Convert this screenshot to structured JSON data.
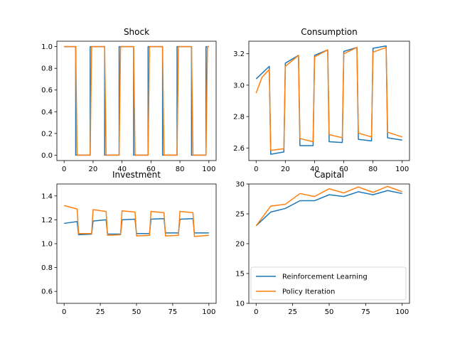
{
  "chart_data": [
    {
      "type": "line",
      "title": "Shock",
      "xlim": [
        -5,
        105
      ],
      "ylim": [
        -0.05,
        1.05
      ],
      "xticks": [
        0,
        20,
        40,
        60,
        80,
        100
      ],
      "yticks": [
        0.0,
        0.2,
        0.4,
        0.6,
        0.8,
        1.0
      ],
      "ytick_labels": [
        "0.0",
        "0.2",
        "0.4",
        "0.6",
        "0.8",
        "1.0"
      ],
      "series": [
        {
          "color": "#1f77b4",
          "x": [
            0,
            8,
            8.01,
            18,
            18.01,
            28,
            28.01,
            38,
            38.01,
            48,
            48.01,
            58,
            58.01,
            68,
            68.01,
            78,
            78.01,
            88,
            88.01,
            98,
            98.01,
            100
          ],
          "y": [
            1,
            1,
            0,
            0,
            1,
            1,
            0,
            0,
            1,
            1,
            0,
            0,
            1,
            1,
            0,
            0,
            1,
            1,
            0,
            0,
            1,
            1
          ]
        },
        {
          "color": "#ff7f0e",
          "x": [
            0,
            8,
            9,
            18,
            19,
            28,
            29,
            38,
            39,
            48,
            49,
            58,
            59,
            68,
            69,
            78,
            79,
            88,
            89,
            98,
            99,
            100
          ],
          "y": [
            1,
            1,
            0,
            0,
            1,
            1,
            0,
            0,
            1,
            1,
            0,
            0,
            1,
            1,
            0,
            0,
            1,
            1,
            0,
            0,
            1,
            1
          ]
        }
      ]
    },
    {
      "type": "line",
      "title": "Consumption",
      "xlim": [
        -5,
        105
      ],
      "ylim": [
        2.52,
        3.28
      ],
      "xticks": [
        0,
        20,
        40,
        60,
        80,
        100
      ],
      "yticks": [
        2.6,
        2.8,
        3.0,
        3.2
      ],
      "ytick_labels": [
        "2.6",
        "2.8",
        "3.0",
        "3.2"
      ],
      "series": [
        {
          "color": "#1f77b4",
          "x": [
            0,
            9,
            10,
            19,
            20,
            29,
            30,
            39,
            40,
            49,
            50,
            59,
            60,
            69,
            70,
            79,
            80,
            89,
            90,
            100
          ],
          "y": [
            3.04,
            3.12,
            2.56,
            2.575,
            3.14,
            3.19,
            2.615,
            2.615,
            3.19,
            3.225,
            2.64,
            2.635,
            3.215,
            3.24,
            2.655,
            2.645,
            3.235,
            3.25,
            2.665,
            2.65
          ]
        },
        {
          "color": "#ff7f0e",
          "x": [
            0,
            4,
            9,
            10,
            19,
            20,
            29,
            30,
            39,
            40,
            49,
            50,
            59,
            60,
            69,
            70,
            79,
            80,
            89,
            90,
            100
          ],
          "y": [
            2.95,
            3.05,
            3.1,
            2.585,
            2.595,
            3.12,
            3.19,
            2.66,
            2.64,
            3.18,
            3.225,
            2.685,
            2.665,
            3.2,
            3.24,
            2.695,
            2.67,
            3.21,
            3.24,
            2.7,
            2.67
          ]
        }
      ]
    },
    {
      "type": "line",
      "title": "Investment",
      "xlim": [
        -5,
        105
      ],
      "ylim": [
        0.5,
        1.5
      ],
      "xticks": [
        0,
        25,
        50,
        75,
        100
      ],
      "yticks": [
        0.6,
        0.8,
        1.0,
        1.2,
        1.4
      ],
      "ytick_labels": [
        "0.6",
        "0.8",
        "1.0",
        "1.2",
        "1.4"
      ],
      "series": [
        {
          "color": "#1f77b4",
          "x": [
            0,
            9,
            10,
            19,
            20,
            29,
            30,
            39,
            40,
            49,
            50,
            59,
            60,
            69,
            70,
            79,
            80,
            89,
            90,
            100
          ],
          "y": [
            1.17,
            1.185,
            1.075,
            1.08,
            1.19,
            1.2,
            1.08,
            1.08,
            1.2,
            1.205,
            1.085,
            1.085,
            1.205,
            1.21,
            1.09,
            1.09,
            1.205,
            1.21,
            1.09,
            1.09
          ]
        },
        {
          "color": "#ff7f0e",
          "x": [
            0,
            9,
            10,
            19,
            20,
            29,
            30,
            39,
            40,
            49,
            50,
            59,
            60,
            69,
            70,
            79,
            80,
            89,
            90,
            100
          ],
          "y": [
            1.32,
            1.29,
            1.085,
            1.085,
            1.285,
            1.27,
            1.07,
            1.075,
            1.275,
            1.265,
            1.065,
            1.07,
            1.27,
            1.26,
            1.065,
            1.07,
            1.27,
            1.26,
            1.06,
            1.07
          ]
        }
      ]
    },
    {
      "type": "line",
      "title": "Capital",
      "xlim": [
        -5,
        105
      ],
      "ylim": [
        10,
        30
      ],
      "xticks": [
        0,
        25,
        50,
        75,
        100
      ],
      "yticks": [
        10,
        15,
        20,
        25,
        30
      ],
      "ytick_labels": [
        "10",
        "15",
        "20",
        "25",
        "30"
      ],
      "legend": {
        "position": "lower right",
        "entries": [
          {
            "label": "Reinforcement Learning",
            "color": "#1f77b4"
          },
          {
            "label": "Policy Iteration",
            "color": "#ff7f0e"
          }
        ]
      },
      "series": [
        {
          "name": "Reinforcement Learning",
          "color": "#1f77b4",
          "x": [
            0,
            10,
            20,
            30,
            40,
            50,
            60,
            70,
            80,
            90,
            100
          ],
          "y": [
            23.0,
            25.3,
            25.9,
            27.2,
            27.2,
            28.2,
            27.9,
            28.7,
            28.2,
            28.9,
            28.4
          ]
        },
        {
          "name": "Policy Iteration",
          "color": "#ff7f0e",
          "x": [
            0,
            10,
            20,
            30,
            40,
            50,
            60,
            70,
            80,
            90,
            100
          ],
          "y": [
            23.0,
            26.3,
            26.6,
            28.4,
            27.9,
            29.2,
            28.5,
            29.5,
            28.6,
            29.6,
            28.7
          ]
        }
      ]
    }
  ]
}
